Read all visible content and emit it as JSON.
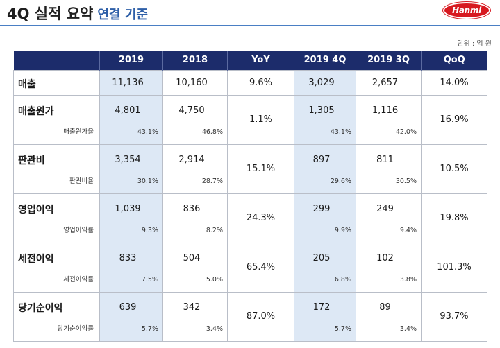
{
  "header": {
    "title": "4Q 실적 요약",
    "subtitle": "연결 기준",
    "logo_text": "Hanmi",
    "unit": "단위 : 억 원"
  },
  "table": {
    "columns": [
      "",
      "2019",
      "2018",
      "YoY",
      "2019 4Q",
      "2019 3Q",
      "QoQ"
    ],
    "rows": [
      {
        "label": "매출",
        "sublabel": "",
        "y2019": "11,136",
        "y2019_pct": "",
        "y2018": "10,160",
        "y2018_pct": "",
        "yoy": "9.6%",
        "q4": "3,029",
        "q4_pct": "",
        "q3": "2,657",
        "q3_pct": "",
        "qoq": "14.0%"
      },
      {
        "label": "매출원가",
        "sublabel": "매출원가율",
        "y2019": "4,801",
        "y2019_pct": "43.1%",
        "y2018": "4,750",
        "y2018_pct": "46.8%",
        "yoy": "1.1%",
        "q4": "1,305",
        "q4_pct": "43.1%",
        "q3": "1,116",
        "q3_pct": "42.0%",
        "qoq": "16.9%"
      },
      {
        "label": "판관비",
        "sublabel": "판관비율",
        "y2019": "3,354",
        "y2019_pct": "30.1%",
        "y2018": "2,914",
        "y2018_pct": "28.7%",
        "yoy": "15.1%",
        "q4": "897",
        "q4_pct": "29.6%",
        "q3": "811",
        "q3_pct": "30.5%",
        "qoq": "10.5%"
      },
      {
        "label": "영업이익",
        "sublabel": "영업이익률",
        "y2019": "1,039",
        "y2019_pct": "9.3%",
        "y2018": "836",
        "y2018_pct": "8.2%",
        "yoy": "24.3%",
        "q4": "299",
        "q4_pct": "9.9%",
        "q3": "249",
        "q3_pct": "9.4%",
        "qoq": "19.8%"
      },
      {
        "label": "세전이익",
        "sublabel": "세전이익률",
        "y2019": "833",
        "y2019_pct": "7.5%",
        "y2018": "504",
        "y2018_pct": "5.0%",
        "yoy": "65.4%",
        "q4": "205",
        "q4_pct": "6.8%",
        "q3": "102",
        "q3_pct": "3.8%",
        "qoq": "101.3%"
      },
      {
        "label": "당기순이익",
        "sublabel": "당기순이익률",
        "y2019": "639",
        "y2019_pct": "5.7%",
        "y2018": "342",
        "y2018_pct": "3.4%",
        "yoy": "87.0%",
        "q4": "172",
        "q4_pct": "5.7%",
        "q3": "89",
        "q3_pct": "3.4%",
        "qoq": "93.7%"
      }
    ]
  },
  "colors": {
    "header_bg": "#1c2c6b",
    "highlight_bg": "#dde8f5",
    "subtitle": "#2e5fa8",
    "logo": "#d71920"
  }
}
